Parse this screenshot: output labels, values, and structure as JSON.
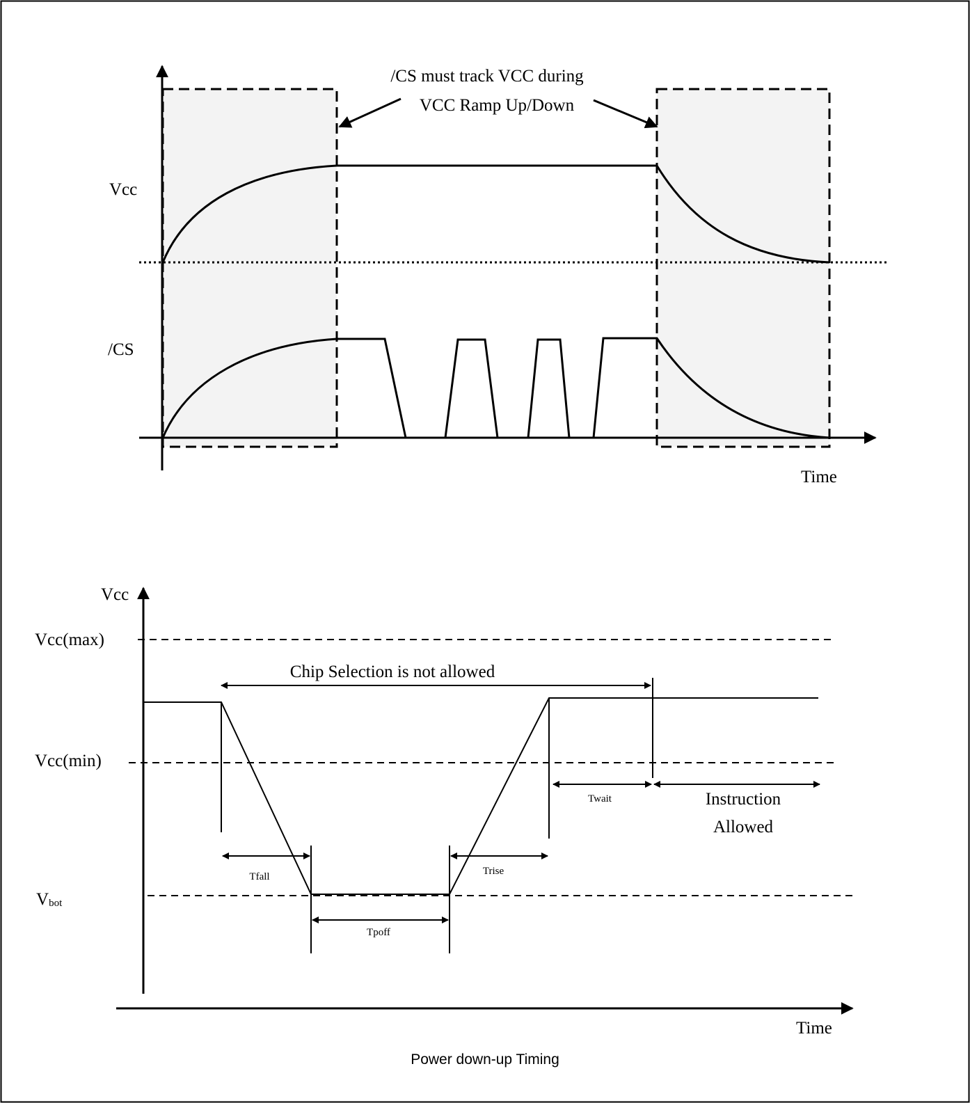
{
  "top_diagram": {
    "annotation_line1": "/CS must track VCC during",
    "annotation_line2": "VCC Ramp Up/Down",
    "vcc_label": "Vcc",
    "cs_label": "/CS",
    "time_label": "Time"
  },
  "bottom_diagram": {
    "vcc_axis_label": "Vcc",
    "vcc_max_label": "Vcc(max)",
    "vcc_min_label": "Vcc(min)",
    "vbot_main": "V",
    "vbot_sub": "bot",
    "chip_selection_label": "Chip Selection is not allowed",
    "tfall_label": "Tfall",
    "tpoff_label": "Tpoff",
    "trise_label": "Trise",
    "twait_label": "Twait",
    "instruction_line1": "Instruction",
    "instruction_line2": "Allowed",
    "time_label": "Time"
  },
  "caption": "Power down-up Timing"
}
